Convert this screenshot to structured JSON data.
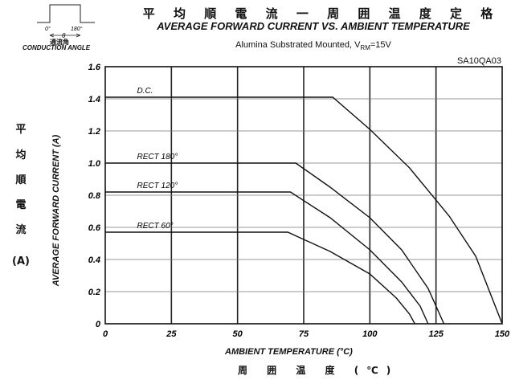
{
  "chart_data": {
    "type": "line",
    "title_cn": "平 均 順 電 流 一 周 囲 温 度 定 格",
    "title": "AVERAGE FORWARD CURRENT VS. AMBIENT TEMPERATURE",
    "subtitle_main": "Alumina Substrated Mounted, V",
    "subtitle_sub": "RM",
    "subtitle_tail": "=15V",
    "model": "SA10QA03",
    "xlabel": "AMBIENT TEMPERATURE (°C)",
    "xlabel_cn": "周 囲 温 度 (℃)",
    "ylabel": "AVERAGE FORWARD CURRENT (A)",
    "ylabel_cn": [
      "平",
      "均",
      "順",
      "電",
      "流",
      "(A)"
    ],
    "xlim": [
      0,
      150
    ],
    "ylim": [
      0,
      1.6
    ],
    "x_ticks": [
      "0",
      "25",
      "50",
      "75",
      "100",
      "125",
      "150"
    ],
    "y_ticks": [
      "0",
      "0.2",
      "0.4",
      "0.6",
      "0.8",
      "1.0",
      "1.2",
      "1.4",
      "1.6"
    ],
    "grid": true,
    "series": [
      {
        "name": "D.C.",
        "points": [
          [
            0,
            1.41
          ],
          [
            86,
            1.41
          ],
          [
            100,
            1.21
          ],
          [
            115,
            0.97
          ],
          [
            130,
            0.67
          ],
          [
            140,
            0.42
          ],
          [
            150,
            0.0
          ]
        ]
      },
      {
        "name": "RECT 180°",
        "points": [
          [
            0,
            1.0
          ],
          [
            72,
            1.0
          ],
          [
            85,
            0.85
          ],
          [
            100,
            0.66
          ],
          [
            112,
            0.46
          ],
          [
            122,
            0.22
          ],
          [
            128,
            0.0
          ]
        ]
      },
      {
        "name": "RECT 120°",
        "points": [
          [
            0,
            0.82
          ],
          [
            70,
            0.82
          ],
          [
            85,
            0.66
          ],
          [
            100,
            0.46
          ],
          [
            112,
            0.26
          ],
          [
            119,
            0.11
          ],
          [
            122,
            0.0
          ]
        ]
      },
      {
        "name": "RECT 60°",
        "points": [
          [
            0,
            0.57
          ],
          [
            69,
            0.57
          ],
          [
            85,
            0.45
          ],
          [
            100,
            0.31
          ],
          [
            110,
            0.16
          ],
          [
            115,
            0.06
          ],
          [
            117,
            0.0
          ]
        ]
      }
    ]
  },
  "inset": {
    "tick_0": "0°",
    "tick_180": "180°",
    "theta": "θ",
    "label_cn": "通流角",
    "label_en": "CONDUCTION ANGLE"
  }
}
